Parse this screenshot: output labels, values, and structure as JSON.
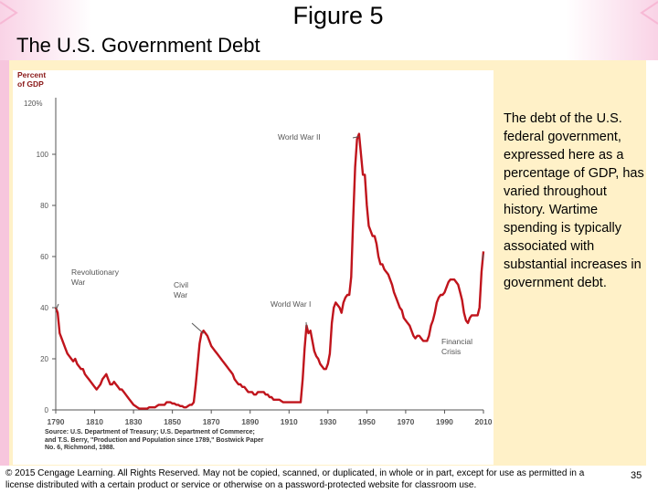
{
  "slide": {
    "figure_label": "Figure 5",
    "title": "The U.S. Government Debt",
    "caption": "The debt of the U.S. federal government, expressed here as a percentage of GDP, has varied throughout history. Wartime spending is typically associated with substantial increases in government debt.",
    "source_note": "Source: U.S. Department of Treasury; U.S. Department of Commerce; and T.S. Berry, \"Production and Population since 1789,\" Bostwick Paper No. 6, Richmond, 1988.",
    "copyright": "© 2015 Cengage Learning. All Rights Reserved. May not be copied, scanned, or duplicated, in whole or in part, except for use as permitted in a license distributed with a certain product or service or otherwise on a password-protected website for classroom use.",
    "page_number": "35"
  },
  "colors": {
    "line": "#c0141c",
    "axis": "#555555",
    "panel": "#fff1c8",
    "accent_pink": "#f7c6dd"
  },
  "chart_data": {
    "type": "line",
    "title": "",
    "ylabel": [
      "Percent",
      "of GDP"
    ],
    "ylabel_unit_first_tick": "120%",
    "xlabel": "",
    "xlim": [
      1790,
      2010
    ],
    "ylim": [
      0,
      120
    ],
    "x_ticks": [
      1790,
      1810,
      1830,
      1850,
      1870,
      1890,
      1910,
      1930,
      1950,
      1970,
      1990,
      2010
    ],
    "y_ticks": [
      0,
      20,
      40,
      60,
      80,
      100,
      120
    ],
    "y_tick_labels": [
      "0",
      "20",
      "40",
      "60",
      "80",
      "100",
      "120%"
    ],
    "grid": false,
    "series": [
      {
        "points": [
          [
            1790,
            40
          ],
          [
            1791,
            38
          ],
          [
            1792,
            30
          ],
          [
            1793,
            28
          ],
          [
            1794,
            26
          ],
          [
            1795,
            24
          ],
          [
            1796,
            22
          ],
          [
            1797,
            21
          ],
          [
            1798,
            20
          ],
          [
            1799,
            19
          ],
          [
            1800,
            20
          ],
          [
            1801,
            18
          ],
          [
            1802,
            17
          ],
          [
            1803,
            16
          ],
          [
            1804,
            16
          ],
          [
            1805,
            14
          ],
          [
            1806,
            13
          ],
          [
            1807,
            12
          ],
          [
            1808,
            11
          ],
          [
            1809,
            10
          ],
          [
            1810,
            9
          ],
          [
            1811,
            8
          ],
          [
            1812,
            9
          ],
          [
            1813,
            10
          ],
          [
            1814,
            12
          ],
          [
            1815,
            13
          ],
          [
            1816,
            14
          ],
          [
            1817,
            12
          ],
          [
            1818,
            10
          ],
          [
            1819,
            10
          ],
          [
            1820,
            11
          ],
          [
            1821,
            10
          ],
          [
            1822,
            9
          ],
          [
            1823,
            8
          ],
          [
            1824,
            8
          ],
          [
            1825,
            7
          ],
          [
            1826,
            6
          ],
          [
            1827,
            5
          ],
          [
            1828,
            4
          ],
          [
            1829,
            3
          ],
          [
            1830,
            2
          ],
          [
            1831,
            1.5
          ],
          [
            1832,
            1
          ],
          [
            1833,
            0.5
          ],
          [
            1834,
            0.5
          ],
          [
            1835,
            0.5
          ],
          [
            1836,
            0.5
          ],
          [
            1837,
            0.5
          ],
          [
            1838,
            1
          ],
          [
            1839,
            1
          ],
          [
            1840,
            1
          ],
          [
            1841,
            1
          ],
          [
            1842,
            1.5
          ],
          [
            1843,
            2
          ],
          [
            1844,
            2
          ],
          [
            1845,
            2
          ],
          [
            1846,
            2
          ],
          [
            1847,
            3
          ],
          [
            1848,
            3
          ],
          [
            1849,
            3
          ],
          [
            1850,
            2.5
          ],
          [
            1851,
            2.5
          ],
          [
            1852,
            2
          ],
          [
            1853,
            2
          ],
          [
            1854,
            1.5
          ],
          [
            1855,
            1.5
          ],
          [
            1856,
            1
          ],
          [
            1857,
            1
          ],
          [
            1858,
            1.5
          ],
          [
            1859,
            2
          ],
          [
            1860,
            2
          ],
          [
            1861,
            3
          ],
          [
            1862,
            10
          ],
          [
            1863,
            18
          ],
          [
            1864,
            26
          ],
          [
            1865,
            30
          ],
          [
            1866,
            31
          ],
          [
            1867,
            30
          ],
          [
            1868,
            29
          ],
          [
            1869,
            27
          ],
          [
            1870,
            25
          ],
          [
            1871,
            24
          ],
          [
            1872,
            23
          ],
          [
            1873,
            22
          ],
          [
            1874,
            21
          ],
          [
            1875,
            20
          ],
          [
            1876,
            19
          ],
          [
            1877,
            18
          ],
          [
            1878,
            17
          ],
          [
            1879,
            16
          ],
          [
            1880,
            15
          ],
          [
            1881,
            14
          ],
          [
            1882,
            12
          ],
          [
            1883,
            11
          ],
          [
            1884,
            10
          ],
          [
            1885,
            10
          ],
          [
            1886,
            9
          ],
          [
            1887,
            9
          ],
          [
            1888,
            8
          ],
          [
            1889,
            7
          ],
          [
            1890,
            7
          ],
          [
            1891,
            7
          ],
          [
            1892,
            6
          ],
          [
            1893,
            6
          ],
          [
            1894,
            7
          ],
          [
            1895,
            7
          ],
          [
            1896,
            7
          ],
          [
            1897,
            7
          ],
          [
            1898,
            6
          ],
          [
            1899,
            6
          ],
          [
            1900,
            5
          ],
          [
            1901,
            5
          ],
          [
            1902,
            4
          ],
          [
            1903,
            4
          ],
          [
            1904,
            4
          ],
          [
            1905,
            4
          ],
          [
            1906,
            3.5
          ],
          [
            1907,
            3
          ],
          [
            1908,
            3
          ],
          [
            1909,
            3
          ],
          [
            1910,
            3
          ],
          [
            1911,
            3
          ],
          [
            1912,
            3
          ],
          [
            1913,
            3
          ],
          [
            1914,
            3
          ],
          [
            1915,
            3
          ],
          [
            1916,
            3
          ],
          [
            1917,
            12
          ],
          [
            1918,
            24
          ],
          [
            1919,
            33
          ],
          [
            1920,
            30
          ],
          [
            1921,
            31
          ],
          [
            1922,
            27
          ],
          [
            1923,
            23
          ],
          [
            1924,
            21
          ],
          [
            1925,
            20
          ],
          [
            1926,
            18
          ],
          [
            1927,
            17
          ],
          [
            1928,
            16
          ],
          [
            1929,
            16
          ],
          [
            1930,
            18
          ],
          [
            1931,
            22
          ],
          [
            1932,
            34
          ],
          [
            1933,
            40
          ],
          [
            1934,
            42
          ],
          [
            1935,
            41
          ],
          [
            1936,
            40
          ],
          [
            1937,
            38
          ],
          [
            1938,
            42
          ],
          [
            1939,
            44
          ],
          [
            1940,
            45
          ],
          [
            1941,
            45
          ],
          [
            1942,
            52
          ],
          [
            1943,
            75
          ],
          [
            1944,
            95
          ],
          [
            1945,
            106
          ],
          [
            1946,
            108
          ],
          [
            1947,
            100
          ],
          [
            1948,
            92
          ],
          [
            1949,
            92
          ],
          [
            1950,
            80
          ],
          [
            1951,
            72
          ],
          [
            1952,
            70
          ],
          [
            1953,
            68
          ],
          [
            1954,
            68
          ],
          [
            1955,
            65
          ],
          [
            1956,
            60
          ],
          [
            1957,
            57
          ],
          [
            1958,
            57
          ],
          [
            1959,
            55
          ],
          [
            1960,
            54
          ],
          [
            1961,
            53
          ],
          [
            1962,
            51
          ],
          [
            1963,
            49
          ],
          [
            1964,
            46
          ],
          [
            1965,
            44
          ],
          [
            1966,
            42
          ],
          [
            1967,
            40
          ],
          [
            1968,
            39
          ],
          [
            1969,
            36
          ],
          [
            1970,
            35
          ],
          [
            1971,
            34
          ],
          [
            1972,
            33
          ],
          [
            1973,
            31
          ],
          [
            1974,
            29
          ],
          [
            1975,
            28
          ],
          [
            1976,
            29
          ],
          [
            1977,
            29
          ],
          [
            1978,
            28
          ],
          [
            1979,
            27
          ],
          [
            1980,
            27
          ],
          [
            1981,
            27
          ],
          [
            1982,
            29
          ],
          [
            1983,
            33
          ],
          [
            1984,
            35
          ],
          [
            1985,
            38
          ],
          [
            1986,
            42
          ],
          [
            1987,
            44
          ],
          [
            1988,
            45
          ],
          [
            1989,
            45
          ],
          [
            1990,
            46
          ],
          [
            1991,
            48
          ],
          [
            1992,
            50
          ],
          [
            1993,
            51
          ],
          [
            1994,
            51
          ],
          [
            1995,
            51
          ],
          [
            1996,
            50
          ],
          [
            1997,
            49
          ],
          [
            1998,
            46
          ],
          [
            1999,
            43
          ],
          [
            2000,
            38
          ],
          [
            2001,
            35
          ],
          [
            2002,
            34
          ],
          [
            2003,
            36
          ],
          [
            2004,
            37
          ],
          [
            2005,
            37
          ],
          [
            2006,
            37
          ],
          [
            2007,
            37
          ],
          [
            2008,
            40
          ],
          [
            2009,
            54
          ],
          [
            2010,
            62
          ]
        ]
      }
    ],
    "annotations": [
      {
        "lines": [
          "Revolutionary",
          "War"
        ],
        "x": 1790,
        "y": 40
      },
      {
        "lines": [
          "Civil",
          "War"
        ],
        "x": 1866,
        "y": 31
      },
      {
        "lines": [
          "World War I"
        ],
        "x": 1919,
        "y": 33
      },
      {
        "lines": [
          "World War II"
        ],
        "x": 1946,
        "y": 108
      },
      {
        "lines": [
          "Financial",
          "Crisis"
        ],
        "x": 2010,
        "y": 62
      }
    ]
  }
}
